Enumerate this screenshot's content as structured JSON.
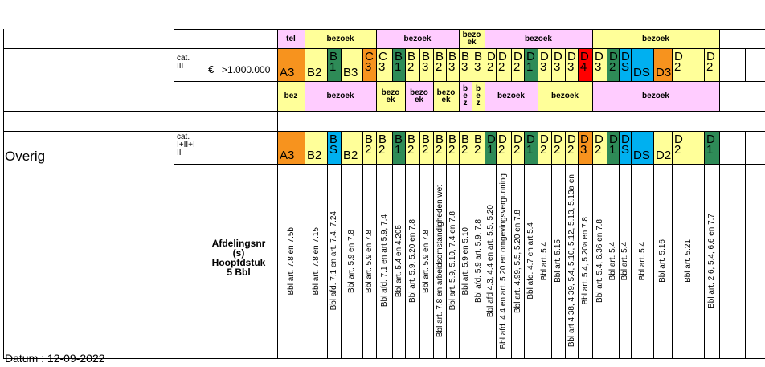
{
  "colors": {
    "orange": "#f7931e",
    "light_yellow": "#ffff99",
    "dark_green": "#2e8b57",
    "light_green": "#92d050",
    "cyan": "#00b0f0",
    "pink": "#ffccff",
    "red": "#ff0000"
  },
  "left": {
    "cat_top": "cat.\nIII",
    "euro": "€",
    "amount": ">1.000.000",
    "overig": "Overig",
    "cat_bottom": "cat.\nI+II+I\nII",
    "afdeling": "Afdelingsnr\n(s)\nHoopfdstuk\n5 Bbl",
    "datum": "Datum : 12-09-2022"
  },
  "row1": [
    {
      "text": "tel",
      "color": "pink"
    },
    {
      "text": "bezoek",
      "color": "light_yellow"
    },
    {
      "text": "bezoek",
      "color": "pink"
    },
    {
      "text": "bezo\nek",
      "color": "light_yellow"
    },
    {
      "text": "bezoek",
      "color": "pink"
    },
    {
      "text": "bezoek",
      "color": "light_yellow"
    }
  ],
  "row2": [
    {
      "text": "A3",
      "color": "orange"
    },
    {
      "text": "B2",
      "color": "light_yellow"
    },
    {
      "text": "B\n1",
      "color": "dark_green"
    },
    {
      "text": "B3",
      "color": "light_yellow"
    },
    {
      "text": "C\n3",
      "color": "orange"
    },
    {
      "text": "C\n3",
      "color": "light_yellow"
    },
    {
      "text": "B\n1",
      "color": "dark_green"
    },
    {
      "text": "B\n2",
      "color": "light_yellow"
    },
    {
      "text": "B\n3",
      "color": "light_yellow"
    },
    {
      "text": "B\n2",
      "color": "light_yellow"
    },
    {
      "text": "B\n3",
      "color": "light_yellow"
    },
    {
      "text": "B\n3",
      "color": "light_yellow"
    },
    {
      "text": "B\n3",
      "color": "light_yellow"
    },
    {
      "text": "D\n2",
      "color": "light_yellow"
    },
    {
      "text": "D\n2",
      "color": "light_yellow"
    },
    {
      "text": "D\n2",
      "color": "light_yellow"
    },
    {
      "text": "D\n1",
      "color": "dark_green"
    },
    {
      "text": "D\n3",
      "color": "light_yellow"
    },
    {
      "text": "D\n3",
      "color": "light_yellow"
    },
    {
      "text": "D\n3",
      "color": "light_yellow"
    },
    {
      "text": "D\n4",
      "color": "red"
    },
    {
      "text": "D\n3",
      "color": "light_yellow"
    },
    {
      "text": "D\n2",
      "color": "dark_green"
    },
    {
      "text": "D\nS",
      "color": "cyan"
    },
    {
      "text": "DS",
      "color": "cyan"
    },
    {
      "text": "D3",
      "color": "orange"
    },
    {
      "text": "D\n2",
      "color": "light_yellow"
    },
    {
      "text": "D\n2",
      "color": "light_yellow"
    }
  ],
  "row3": [
    {
      "text": "bez",
      "color": "light_yellow"
    },
    {
      "text": "bezoek",
      "color": "pink"
    },
    {
      "text": "bezo\nek",
      "color": "light_yellow"
    },
    {
      "text": "bezo\nek",
      "color": "pink"
    },
    {
      "text": "bezo\nek",
      "color": "light_yellow"
    },
    {
      "text": "b\ne\nz",
      "color": "pink"
    },
    {
      "text": "b\ne\nz",
      "color": "light_yellow"
    },
    {
      "text": "bezoek",
      "color": "pink"
    },
    {
      "text": "bezoek",
      "color": "light_yellow"
    },
    {
      "text": "bezoek",
      "color": "pink"
    }
  ],
  "row4": [
    {
      "text": "A3",
      "color": "orange"
    },
    {
      "text": "B2",
      "color": "light_yellow"
    },
    {
      "text": "B\nS",
      "color": "cyan"
    },
    {
      "text": "B2",
      "color": "light_yellow"
    },
    {
      "text": "B\n2",
      "color": "light_yellow"
    },
    {
      "text": "B\n2",
      "color": "light_yellow"
    },
    {
      "text": "B\n1",
      "color": "dark_green"
    },
    {
      "text": "B\n2",
      "color": "light_yellow"
    },
    {
      "text": "B\n2",
      "color": "light_yellow"
    },
    {
      "text": "B\n2",
      "color": "light_yellow"
    },
    {
      "text": "B\n2",
      "color": "light_yellow"
    },
    {
      "text": "B\n2",
      "color": "light_yellow"
    },
    {
      "text": "B\n2",
      "color": "light_yellow"
    },
    {
      "text": "D\n1",
      "color": "dark_green"
    },
    {
      "text": "D\n2",
      "color": "light_yellow"
    },
    {
      "text": "D\n2",
      "color": "light_yellow"
    },
    {
      "text": "D\n1",
      "color": "dark_green"
    },
    {
      "text": "D\n2",
      "color": "light_yellow"
    },
    {
      "text": "D\n2",
      "color": "light_yellow"
    },
    {
      "text": "D\n2",
      "color": "light_yellow"
    },
    {
      "text": "D\n3",
      "color": "orange"
    },
    {
      "text": "D\n2",
      "color": "light_yellow"
    },
    {
      "text": "D\n1",
      "color": "dark_green"
    },
    {
      "text": "D\nS",
      "color": "cyan"
    },
    {
      "text": "DS",
      "color": "cyan"
    },
    {
      "text": "D2",
      "color": "light_yellow"
    },
    {
      "text": "D\n2",
      "color": "light_yellow"
    },
    {
      "text": "D\n1",
      "color": "dark_green"
    }
  ],
  "row5": [
    "Bbl art. 7.8 en 7.5b",
    "Bbl art. 7.8 en 7.15",
    "Bbl afd. 7.1 en art. 7.4, 7.24",
    "Bbl art. 5.9 en 7.8",
    "Bbl art. 5.9 en 7.8",
    "Bbl afd. 7.1 en art 5.9, 7.4",
    "Bbl art. 5.4 en 4.205",
    "Bbl art. 5.9, 5.20 en 7.8",
    "Bbl art. 5.9 en 7.8",
    "Bbl art. 7.8 en arbeidsomstandigheden wet",
    "Bbl art. 5.9, 5.10, 7.4 en 7.8",
    "Bbl art. 5.9 en 5.10",
    "Bbl afd. 5.9 art. 5.9, 7.8",
    "Bbl afd 4.3, 4.4 en art. 5.5, 5.20",
    "Bbl afd. 4.4 en art. 5.20 en omgevingsvergunning",
    "Bbl art. 4.99, 5.5, 5.20 en 7.8",
    "Bbl afd. 4.7 en art 5.4",
    "Bbl art. 5.4",
    "Bbl art. 5.15",
    "Bbl art 4.38, 4.39, 5.4, 5.10, 5.12, 5.13, 5.13a en",
    "Bbl art. 5.4, 5.20a en 7.8",
    "Bbl art. 5.4, 6.36 en 7.8",
    "Bbl art. 5.4",
    "Bbl art. 5.4",
    "Bbl art. 5.4",
    "Bbl art. 5.16",
    "Bbl art. 5.21",
    "Bbl art. 2.6, 5.4, 6.6 en 7.7"
  ]
}
